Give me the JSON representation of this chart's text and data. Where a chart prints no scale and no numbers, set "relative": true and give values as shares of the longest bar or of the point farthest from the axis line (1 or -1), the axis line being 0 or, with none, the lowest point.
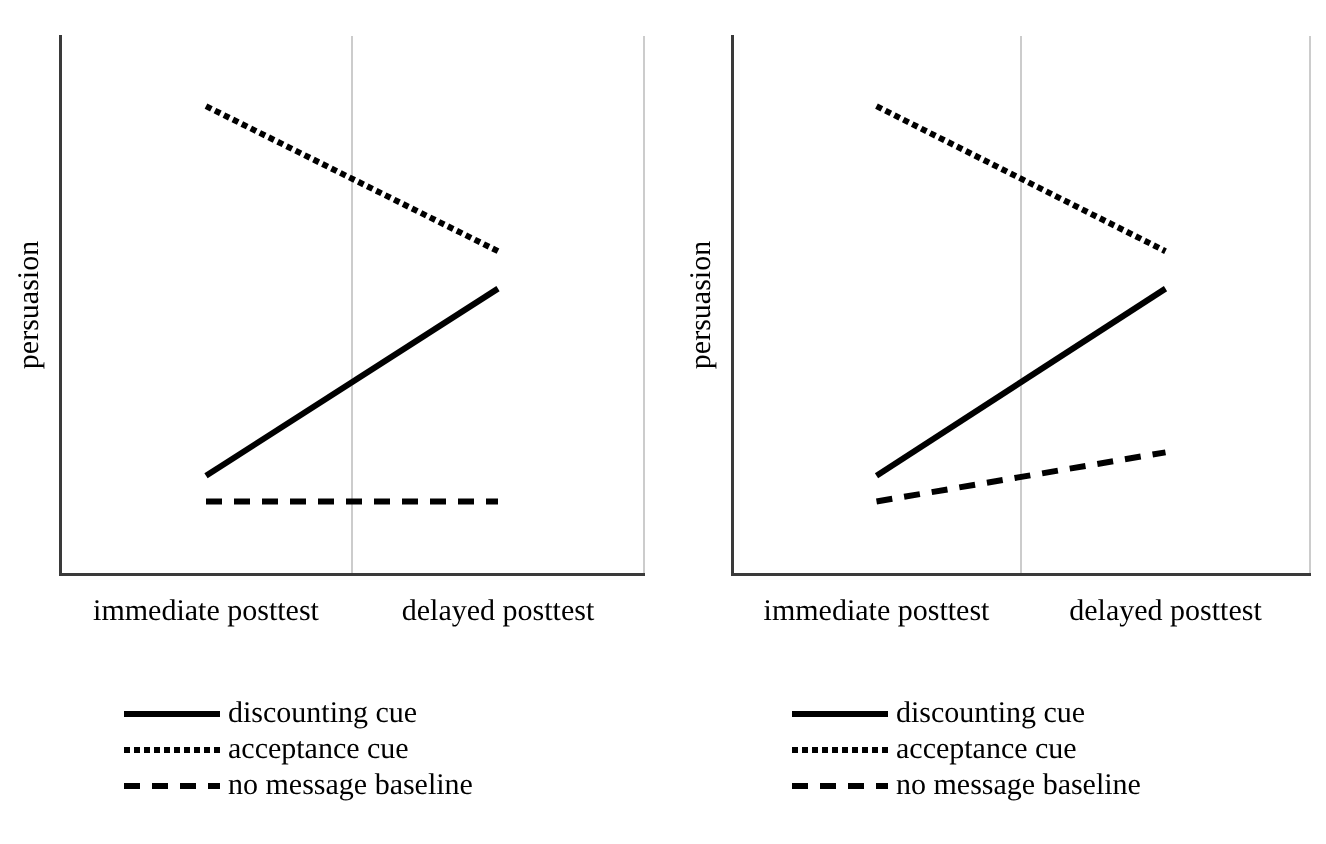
{
  "chart_data": [
    {
      "type": "line",
      "ylabel": "persuasion",
      "categories": [
        "immediate posttest",
        "delayed posttest"
      ],
      "relative": true,
      "grid": "x",
      "legend": "bottom",
      "series": [
        {
          "name": "discounting cue",
          "color": "#000000",
          "line_style": "solid",
          "values": [
            0.21,
            0.61
          ]
        },
        {
          "name": "acceptance cue",
          "color": "#000000",
          "line_style": "dotted",
          "values": [
            1,
            0.69
          ]
        },
        {
          "name": "no message baseline",
          "color": "#000000",
          "line_style": "dashed",
          "values": [
            0.155,
            0.155
          ]
        }
      ]
    },
    {
      "type": "line",
      "ylabel": "persuasion",
      "categories": [
        "immediate posttest",
        "delayed posttest"
      ],
      "relative": true,
      "grid": "x",
      "legend": "bottom",
      "series": [
        {
          "name": "discounting cue",
          "color": "#000000",
          "line_style": "solid",
          "values": [
            0.21,
            0.61
          ]
        },
        {
          "name": "acceptance cue",
          "color": "#000000",
          "line_style": "dotted",
          "values": [
            1,
            0.69
          ]
        },
        {
          "name": "no message baseline",
          "color": "#000000",
          "line_style": "dashed",
          "values": [
            0.155,
            0.26
          ]
        }
      ]
    }
  ]
}
